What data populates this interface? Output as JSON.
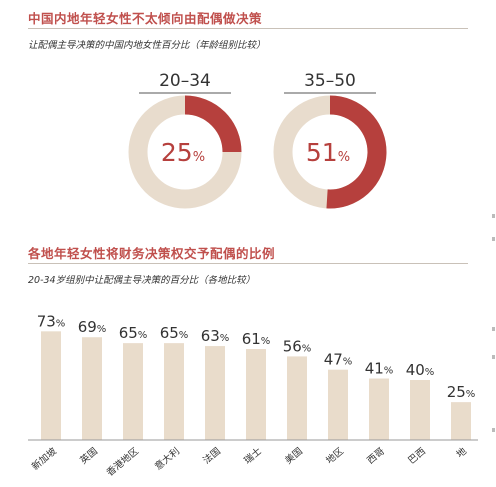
{
  "section1": {
    "title": "中国内地年轻女性不太倾向由配偶做决策",
    "subtitle": "让配偶主导决策的中国内地女性百分比（年龄组别比较）"
  },
  "section2": {
    "title": "各地年轻女性将财务决策权交予配偶的比例",
    "subtitle": "20-34岁组别中让配偶主导决策的百分比（各地比较）"
  },
  "colors": {
    "accent": "#b6403d",
    "bar": "#e9dccb",
    "donut_bg": "#e8dccd"
  },
  "chart_data": [
    {
      "type": "pie",
      "categories": [
        "20–34",
        "35–50"
      ],
      "values": [
        25,
        51
      ],
      "value_suffix": "%"
    },
    {
      "type": "bar",
      "categories": [
        "新加坡",
        "英国",
        "香港地区",
        "意大利",
        "法国",
        "瑞士",
        "美国",
        "地区",
        "西哥",
        "巴西",
        "地"
      ],
      "values": [
        73,
        69,
        65,
        65,
        63,
        61,
        56,
        47,
        41,
        40,
        25
      ],
      "value_suffix": "%",
      "ylim": [
        0,
        80
      ]
    }
  ]
}
